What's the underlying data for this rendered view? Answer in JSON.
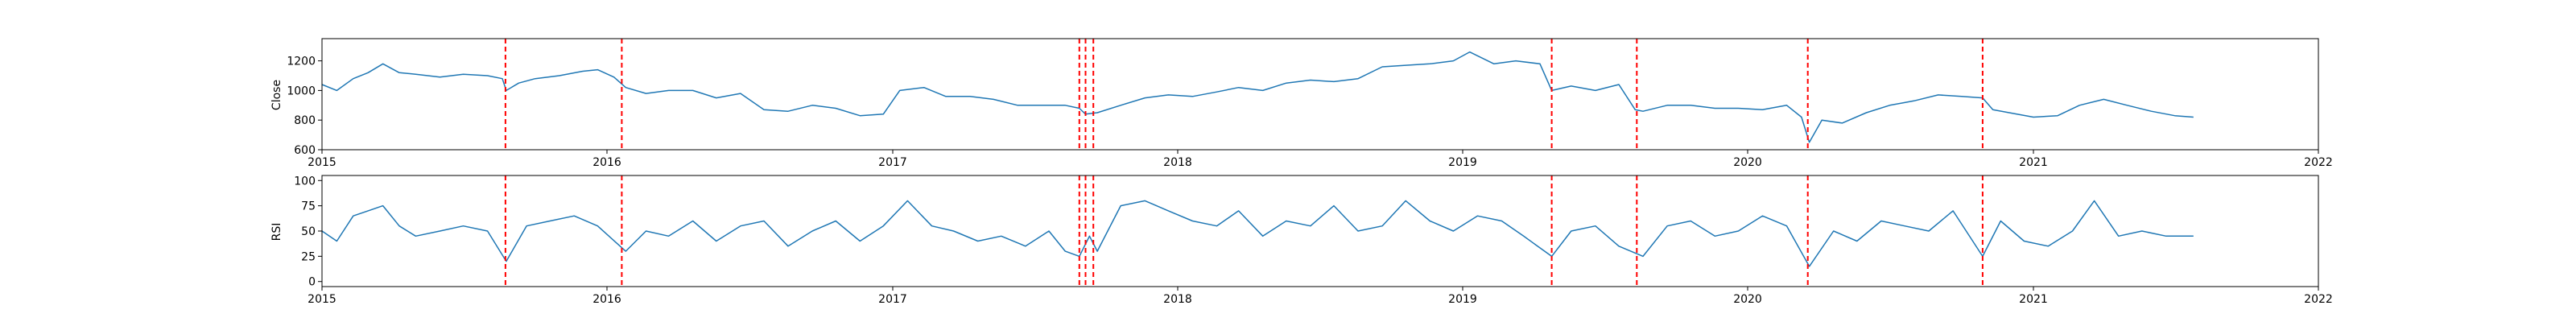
{
  "chart_data": [
    {
      "type": "line",
      "ylabel": "Close",
      "xlabel": "",
      "title": "",
      "xlim": [
        "2015-01-01",
        "2022-01-01"
      ],
      "ylim": [
        600,
        1350
      ],
      "yticks": [
        600,
        800,
        1000,
        1200
      ],
      "xticks": [
        "2015-01-01",
        "2016-01-01",
        "2017-01-01",
        "2018-01-01",
        "2019-01-01",
        "2020-01-01",
        "2021-01-01",
        "2022-01-01"
      ],
      "xtick_labels": [
        "2015",
        "2016",
        "2017",
        "2018",
        "2019",
        "2020",
        "2021",
        "2022"
      ],
      "line_color": "#1f77b4",
      "series": [
        {
          "x": [
            "2015-01-01",
            "2015-01-20",
            "2015-02-10",
            "2015-03-01",
            "2015-03-20",
            "2015-04-10",
            "2015-05-01",
            "2015-06-01",
            "2015-07-01",
            "2015-08-01",
            "2015-08-20",
            "2015-08-25",
            "2015-09-10",
            "2015-10-01",
            "2015-11-01",
            "2015-12-01",
            "2015-12-20",
            "2016-01-10",
            "2016-01-25",
            "2016-02-20",
            "2016-03-20",
            "2016-04-20",
            "2016-05-20",
            "2016-06-20",
            "2016-07-20",
            "2016-08-20",
            "2016-09-20",
            "2016-10-20",
            "2016-11-20",
            "2016-12-20",
            "2017-01-10",
            "2017-02-10",
            "2017-03-10",
            "2017-04-10",
            "2017-05-10",
            "2017-06-10",
            "2017-07-10",
            "2017-08-10",
            "2017-08-28",
            "2017-09-05",
            "2017-09-20",
            "2017-10-20",
            "2017-11-20",
            "2017-12-20",
            "2018-01-20",
            "2018-02-20",
            "2018-03-20",
            "2018-04-20",
            "2018-05-20",
            "2018-06-20",
            "2018-07-20",
            "2018-08-20",
            "2018-09-20",
            "2018-10-20",
            "2018-11-20",
            "2018-12-20",
            "2019-01-10",
            "2019-02-10",
            "2019-03-10",
            "2019-04-10",
            "2019-04-25",
            "2019-05-20",
            "2019-06-20",
            "2019-07-20",
            "2019-08-10",
            "2019-08-20",
            "2019-09-20",
            "2019-10-20",
            "2019-11-20",
            "2019-12-20",
            "2020-01-20",
            "2020-02-20",
            "2020-03-10",
            "2020-03-20",
            "2020-04-05",
            "2020-05-01",
            "2020-06-01",
            "2020-07-01",
            "2020-08-01",
            "2020-09-01",
            "2020-10-01",
            "2020-10-28",
            "2020-11-10",
            "2020-12-01",
            "2021-01-01",
            "2021-02-01",
            "2021-03-01",
            "2021-04-01",
            "2021-05-01",
            "2021-06-01",
            "2021-07-01",
            "2021-07-25"
          ],
          "y": [
            1040,
            1000,
            1080,
            1120,
            1180,
            1120,
            1110,
            1090,
            1110,
            1100,
            1080,
            1000,
            1050,
            1080,
            1100,
            1130,
            1140,
            1090,
            1020,
            980,
            1000,
            1000,
            950,
            980,
            870,
            860,
            900,
            880,
            830,
            840,
            1000,
            1020,
            960,
            960,
            940,
            900,
            900,
            900,
            880,
            840,
            850,
            900,
            950,
            970,
            960,
            990,
            1020,
            1000,
            1050,
            1070,
            1060,
            1080,
            1160,
            1170,
            1180,
            1200,
            1260,
            1180,
            1200,
            1180,
            1000,
            1030,
            1000,
            1040,
            870,
            860,
            900,
            900,
            880,
            880,
            870,
            900,
            820,
            650,
            800,
            780,
            850,
            900,
            930,
            970,
            960,
            950,
            870,
            850,
            820,
            830,
            900,
            940,
            900,
            860,
            830,
            820
          ]
        }
      ]
    },
    {
      "type": "line",
      "ylabel": "RSI",
      "xlabel": "",
      "title": "",
      "xlim": [
        "2015-01-01",
        "2022-01-01"
      ],
      "ylim": [
        -5,
        105
      ],
      "yticks": [
        0,
        25,
        50,
        75,
        100
      ],
      "xticks": [
        "2015-01-01",
        "2016-01-01",
        "2017-01-01",
        "2018-01-01",
        "2019-01-01",
        "2020-01-01",
        "2021-01-01",
        "2022-01-01"
      ],
      "xtick_labels": [
        "2015",
        "2016",
        "2017",
        "2018",
        "2019",
        "2020",
        "2021",
        "2022"
      ],
      "line_color": "#1f77b4",
      "series": [
        {
          "x": [
            "2015-01-01",
            "2015-01-20",
            "2015-02-10",
            "2015-03-01",
            "2015-03-20",
            "2015-04-10",
            "2015-05-01",
            "2015-06-01",
            "2015-07-01",
            "2015-08-01",
            "2015-08-25",
            "2015-09-20",
            "2015-10-20",
            "2015-11-20",
            "2015-12-20",
            "2016-01-25",
            "2016-02-20",
            "2016-03-20",
            "2016-04-20",
            "2016-05-20",
            "2016-06-20",
            "2016-07-20",
            "2016-08-20",
            "2016-09-20",
            "2016-10-20",
            "2016-11-20",
            "2016-12-20",
            "2017-01-20",
            "2017-02-20",
            "2017-03-20",
            "2017-04-20",
            "2017-05-20",
            "2017-06-20",
            "2017-07-20",
            "2017-08-10",
            "2017-08-28",
            "2017-09-10",
            "2017-09-20",
            "2017-10-20",
            "2017-11-20",
            "2017-12-20",
            "2018-01-20",
            "2018-02-20",
            "2018-03-20",
            "2018-04-20",
            "2018-05-20",
            "2018-06-20",
            "2018-07-20",
            "2018-08-20",
            "2018-09-20",
            "2018-10-20",
            "2018-11-20",
            "2018-12-20",
            "2019-01-20",
            "2019-02-20",
            "2019-03-20",
            "2019-04-25",
            "2019-05-20",
            "2019-06-20",
            "2019-07-20",
            "2019-08-20",
            "2019-09-20",
            "2019-10-20",
            "2019-11-20",
            "2019-12-20",
            "2020-01-20",
            "2020-02-20",
            "2020-03-20",
            "2020-04-20",
            "2020-05-20",
            "2020-06-20",
            "2020-07-20",
            "2020-08-20",
            "2020-09-20",
            "2020-10-28",
            "2020-11-20",
            "2020-12-20",
            "2021-01-20",
            "2021-02-20",
            "2021-03-20",
            "2021-04-20",
            "2021-05-20",
            "2021-06-20",
            "2021-07-25"
          ],
          "y": [
            50,
            40,
            65,
            70,
            75,
            55,
            45,
            50,
            55,
            50,
            20,
            55,
            60,
            65,
            55,
            30,
            50,
            45,
            60,
            40,
            55,
            60,
            35,
            50,
            60,
            40,
            55,
            80,
            55,
            50,
            40,
            45,
            35,
            50,
            30,
            25,
            45,
            30,
            75,
            80,
            70,
            60,
            55,
            70,
            45,
            60,
            55,
            75,
            50,
            55,
            80,
            60,
            50,
            65,
            60,
            45,
            25,
            50,
            55,
            35,
            25,
            55,
            60,
            45,
            50,
            65,
            55,
            15,
            50,
            40,
            60,
            55,
            50,
            70,
            25,
            60,
            40,
            35,
            50,
            80,
            45,
            50,
            45,
            45
          ]
        }
      ]
    }
  ],
  "vlines": {
    "color": "#ff0000",
    "dates": [
      "2015-08-24",
      "2016-01-20",
      "2017-08-28",
      "2017-09-05",
      "2017-09-15",
      "2019-04-25",
      "2019-08-12",
      "2020-03-18",
      "2020-10-28"
    ]
  }
}
